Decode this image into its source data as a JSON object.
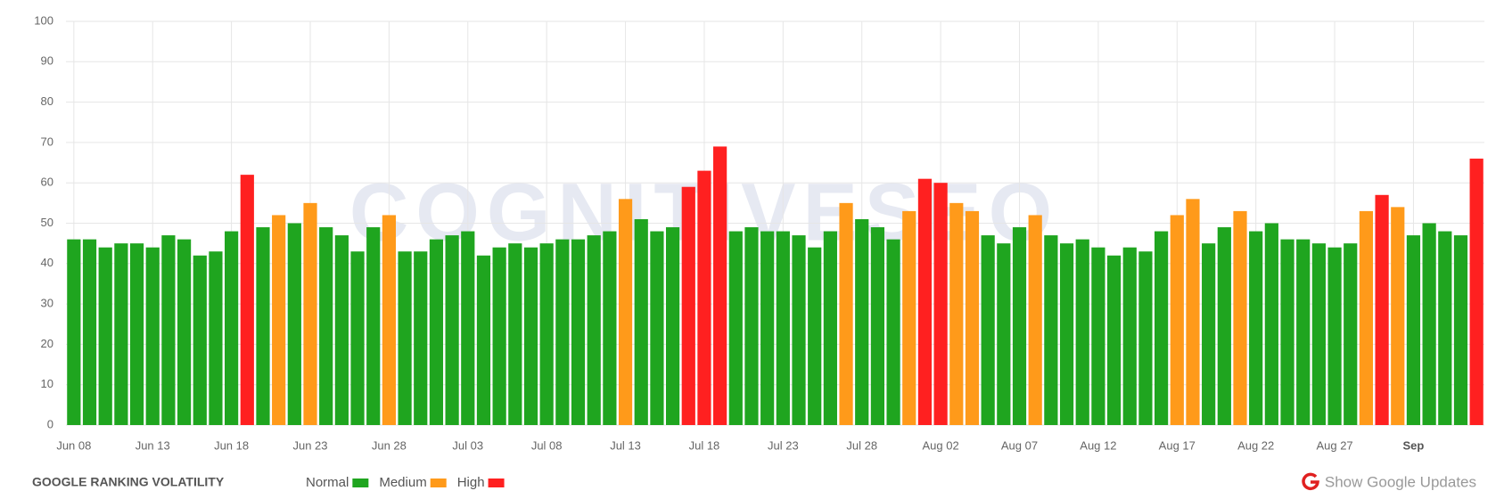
{
  "chart_data": {
    "type": "bar",
    "title": "GOOGLE RANKING VOLATILITY",
    "watermark": "COGNITIVESEO",
    "action": "Show Google Updates",
    "categories": [
      "Jun 08",
      null,
      null,
      null,
      null,
      "Jun 13",
      null,
      null,
      null,
      null,
      "Jun 18",
      null,
      null,
      null,
      null,
      "Jun 23",
      null,
      null,
      null,
      null,
      "Jun 28",
      null,
      null,
      null,
      null,
      "Jul 03",
      null,
      null,
      null,
      null,
      "Jul 08",
      null,
      null,
      null,
      null,
      "Jul 13",
      null,
      null,
      null,
      null,
      "Jul 18",
      null,
      null,
      null,
      null,
      "Jul 23",
      null,
      null,
      null,
      null,
      "Jul 28",
      null,
      null,
      null,
      null,
      "Aug 02",
      null,
      null,
      null,
      null,
      "Aug 07",
      null,
      null,
      null,
      null,
      "Aug 12",
      null,
      null,
      null,
      null,
      "Aug 17",
      null,
      null,
      null,
      null,
      "Aug 22",
      null,
      null,
      null,
      null,
      "Aug 27",
      null,
      null,
      null,
      null,
      "Sep",
      null,
      null,
      null,
      null
    ],
    "values": [
      46,
      46,
      44,
      45,
      45,
      44,
      47,
      46,
      42,
      43,
      48,
      62,
      49,
      52,
      50,
      55,
      49,
      47,
      43,
      49,
      52,
      43,
      43,
      46,
      47,
      48,
      42,
      44,
      45,
      44,
      45,
      46,
      46,
      47,
      48,
      56,
      51,
      48,
      49,
      59,
      63,
      69,
      48,
      49,
      48,
      48,
      47,
      44,
      48,
      55,
      51,
      49,
      46,
      53,
      61,
      60,
      55,
      53,
      47,
      45,
      49,
      52,
      47,
      45,
      46,
      44,
      42,
      44,
      43,
      48,
      52,
      56,
      45,
      49,
      53,
      48,
      50,
      46,
      46,
      45,
      44,
      45,
      53,
      57,
      54,
      47,
      50,
      48,
      47,
      66
    ],
    "colors": [
      "#1fa51f",
      "#1fa51f",
      "#1fa51f",
      "#1fa51f",
      "#1fa51f",
      "#1fa51f",
      "#1fa51f",
      "#1fa51f",
      "#1fa51f",
      "#1fa51f",
      "#1fa51f",
      "#ff2020",
      "#1fa51f",
      "#ff9a1a",
      "#1fa51f",
      "#ff9a1a",
      "#1fa51f",
      "#1fa51f",
      "#1fa51f",
      "#1fa51f",
      "#ff9a1a",
      "#1fa51f",
      "#1fa51f",
      "#1fa51f",
      "#1fa51f",
      "#1fa51f",
      "#1fa51f",
      "#1fa51f",
      "#1fa51f",
      "#1fa51f",
      "#1fa51f",
      "#1fa51f",
      "#1fa51f",
      "#1fa51f",
      "#1fa51f",
      "#ff9a1a",
      "#1fa51f",
      "#1fa51f",
      "#1fa51f",
      "#ff2020",
      "#ff2020",
      "#ff2020",
      "#1fa51f",
      "#1fa51f",
      "#1fa51f",
      "#1fa51f",
      "#1fa51f",
      "#1fa51f",
      "#1fa51f",
      "#ff9a1a",
      "#1fa51f",
      "#1fa51f",
      "#1fa51f",
      "#ff9a1a",
      "#ff2020",
      "#ff2020",
      "#ff9a1a",
      "#ff9a1a",
      "#1fa51f",
      "#1fa51f",
      "#1fa51f",
      "#ff9a1a",
      "#1fa51f",
      "#1fa51f",
      "#1fa51f",
      "#1fa51f",
      "#1fa51f",
      "#1fa51f",
      "#1fa51f",
      "#1fa51f",
      "#ff9a1a",
      "#ff9a1a",
      "#1fa51f",
      "#1fa51f",
      "#ff9a1a",
      "#1fa51f",
      "#1fa51f",
      "#1fa51f",
      "#1fa51f",
      "#1fa51f",
      "#1fa51f",
      "#1fa51f",
      "#ff9a1a",
      "#ff2020",
      "#ff9a1a",
      "#1fa51f",
      "#1fa51f",
      "#1fa51f",
      "#1fa51f",
      "#ff2020"
    ],
    "legend": [
      {
        "name": "Normal",
        "color": "#1fa51f"
      },
      {
        "name": "Medium",
        "color": "#ff9a1a"
      },
      {
        "name": "High",
        "color": "#ff2020"
      }
    ],
    "ylim": [
      0,
      100
    ],
    "yticks": [
      0,
      10,
      20,
      30,
      40,
      50,
      60,
      70,
      80,
      90,
      100
    ],
    "grid": true
  }
}
